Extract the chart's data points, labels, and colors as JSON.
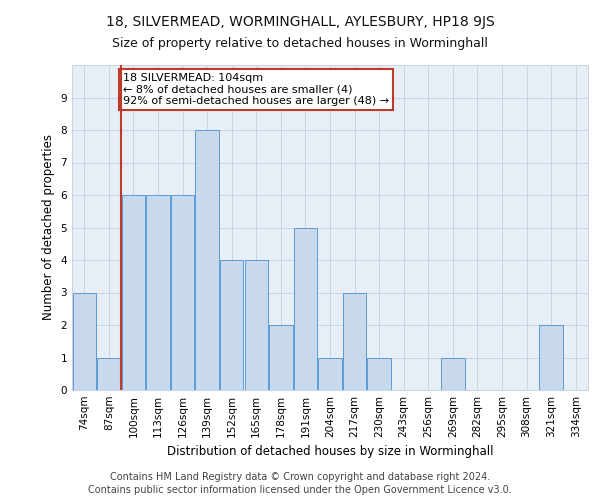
{
  "title1": "18, SILVERMEAD, WORMINGHALL, AYLESBURY, HP18 9JS",
  "title2": "Size of property relative to detached houses in Worminghall",
  "xlabel": "Distribution of detached houses by size in Worminghall",
  "ylabel": "Number of detached properties",
  "categories": [
    "74sqm",
    "87sqm",
    "100sqm",
    "113sqm",
    "126sqm",
    "139sqm",
    "152sqm",
    "165sqm",
    "178sqm",
    "191sqm",
    "204sqm",
    "217sqm",
    "230sqm",
    "243sqm",
    "256sqm",
    "269sqm",
    "282sqm",
    "295sqm",
    "308sqm",
    "321sqm",
    "334sqm"
  ],
  "values": [
    3,
    1,
    6,
    6,
    6,
    8,
    4,
    4,
    2,
    5,
    1,
    3,
    1,
    0,
    0,
    1,
    0,
    0,
    0,
    2,
    0
  ],
  "bar_color": "#c9d9ed",
  "bar_edge_color": "#5b9bd5",
  "ref_line_index": 2,
  "ref_line_color": "#c0392b",
  "annotation_text": "18 SILVERMEAD: 104sqm\n← 8% of detached houses are smaller (4)\n92% of semi-detached houses are larger (48) →",
  "annotation_box_color": "#c0392b",
  "ylim": [
    0,
    10
  ],
  "yticks": [
    0,
    1,
    2,
    3,
    4,
    5,
    6,
    7,
    8,
    9
  ],
  "footer1": "Contains HM Land Registry data © Crown copyright and database right 2024.",
  "footer2": "Contains public sector information licensed under the Open Government Licence v3.0.",
  "title1_fontsize": 10,
  "title2_fontsize": 9,
  "xlabel_fontsize": 8.5,
  "ylabel_fontsize": 8.5,
  "tick_fontsize": 7.5,
  "annotation_fontsize": 8,
  "footer_fontsize": 7,
  "grid_color": "#c8d4e3",
  "bg_color": "#e8eef6"
}
